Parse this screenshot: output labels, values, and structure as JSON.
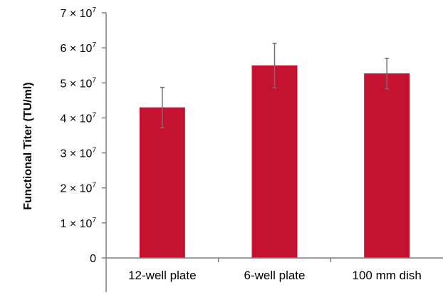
{
  "chart_data": {
    "type": "bar",
    "title": "",
    "xlabel": "",
    "ylabel": "Functional Titer (TU/ml)",
    "categories": [
      "12-well plate",
      "6-well plate",
      "100 mm dish"
    ],
    "values": [
      43000000,
      55000000,
      52700000
    ],
    "error_low": [
      37200000,
      48600000,
      48300000
    ],
    "error_high": [
      48700000,
      61300000,
      57000000
    ],
    "ylim": [
      0,
      70000000
    ],
    "yticks": [
      {
        "value": 0,
        "mantissa": "0",
        "exponent": ""
      },
      {
        "value": 10000000,
        "mantissa": "1 × 10",
        "exponent": "7"
      },
      {
        "value": 20000000,
        "mantissa": "2 × 10",
        "exponent": "7"
      },
      {
        "value": 30000000,
        "mantissa": "3 × 10",
        "exponent": "7"
      },
      {
        "value": 40000000,
        "mantissa": "4 × 10",
        "exponent": "7"
      },
      {
        "value": 50000000,
        "mantissa": "5 × 10",
        "exponent": "7"
      },
      {
        "value": 60000000,
        "mantissa": "6 × 10",
        "exponent": "7"
      },
      {
        "value": 70000000,
        "mantissa": "7 × 10",
        "exponent": "7"
      }
    ],
    "grid": false,
    "bar_color": "#c41230",
    "error_bar_color": "#707070",
    "axis_color": "#7f7f7f"
  }
}
